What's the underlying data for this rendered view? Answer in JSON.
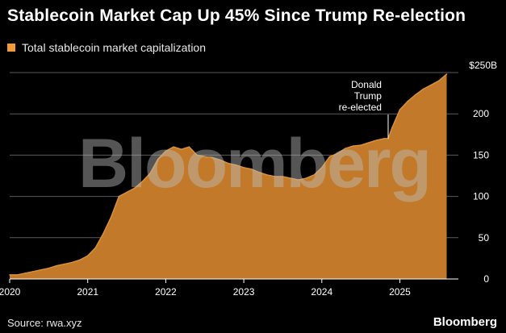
{
  "header": {
    "title": "Stablecoin Market Cap Up 45% Since Trump Re-election"
  },
  "legend": {
    "label": "Total stablecoin market capitalization",
    "color": "#f29b3a"
  },
  "footer": {
    "source": "Source: rwa.xyz",
    "brand": "Bloomberg"
  },
  "watermark": {
    "text": "Bloomberg"
  },
  "colors": {
    "fill": "#c27a2a",
    "fill_top": "#d8903c",
    "grid": "#5a5a5a",
    "background": "#000000"
  },
  "chart_data": {
    "type": "area",
    "title": "Stablecoin Market Cap Up 45% Since Trump Re-election",
    "series_name": "Total stablecoin market capitalization",
    "xlabel": "",
    "ylabel": "",
    "xlim": [
      2020.0,
      2025.75
    ],
    "ylim": [
      0,
      250
    ],
    "y_ticks": [
      0,
      50,
      100,
      150,
      200,
      250
    ],
    "y_tick_labels": [
      "0",
      "50",
      "100",
      "150",
      "200",
      "$250B"
    ],
    "x_ticks": [
      2020,
      2021,
      2022,
      2023,
      2024,
      2025
    ],
    "x_tick_labels": [
      "2020",
      "2021",
      "2022",
      "2023",
      "2024",
      "2025"
    ],
    "grid": true,
    "x": [
      2020.0,
      2020.1,
      2020.2,
      2020.3,
      2020.4,
      2020.5,
      2020.6,
      2020.7,
      2020.8,
      2020.9,
      2021.0,
      2021.1,
      2021.2,
      2021.3,
      2021.4,
      2021.5,
      2021.6,
      2021.7,
      2021.8,
      2021.9,
      2022.0,
      2022.1,
      2022.2,
      2022.3,
      2022.4,
      2022.5,
      2022.6,
      2022.7,
      2022.8,
      2022.9,
      2023.0,
      2023.1,
      2023.2,
      2023.3,
      2023.4,
      2023.5,
      2023.6,
      2023.7,
      2023.8,
      2023.9,
      2024.0,
      2024.1,
      2024.2,
      2024.3,
      2024.4,
      2024.5,
      2024.6,
      2024.7,
      2024.8,
      2024.85,
      2024.9,
      2025.0,
      2025.1,
      2025.2,
      2025.3,
      2025.4,
      2025.5,
      2025.6
    ],
    "values": [
      5,
      5,
      7,
      9,
      11,
      13,
      16,
      18,
      20,
      23,
      28,
      38,
      55,
      75,
      100,
      105,
      110,
      118,
      128,
      145,
      155,
      160,
      157,
      160,
      150,
      148,
      147,
      144,
      140,
      138,
      135,
      133,
      129,
      126,
      124,
      124,
      122,
      120,
      122,
      126,
      135,
      148,
      152,
      158,
      161,
      162,
      165,
      168,
      170,
      170,
      183,
      205,
      215,
      223,
      230,
      235,
      240,
      248
    ],
    "annotations": [
      {
        "x": 2024.85,
        "y": 170,
        "lines": [
          "Donald",
          "Trump",
          "re-elected"
        ]
      }
    ]
  }
}
